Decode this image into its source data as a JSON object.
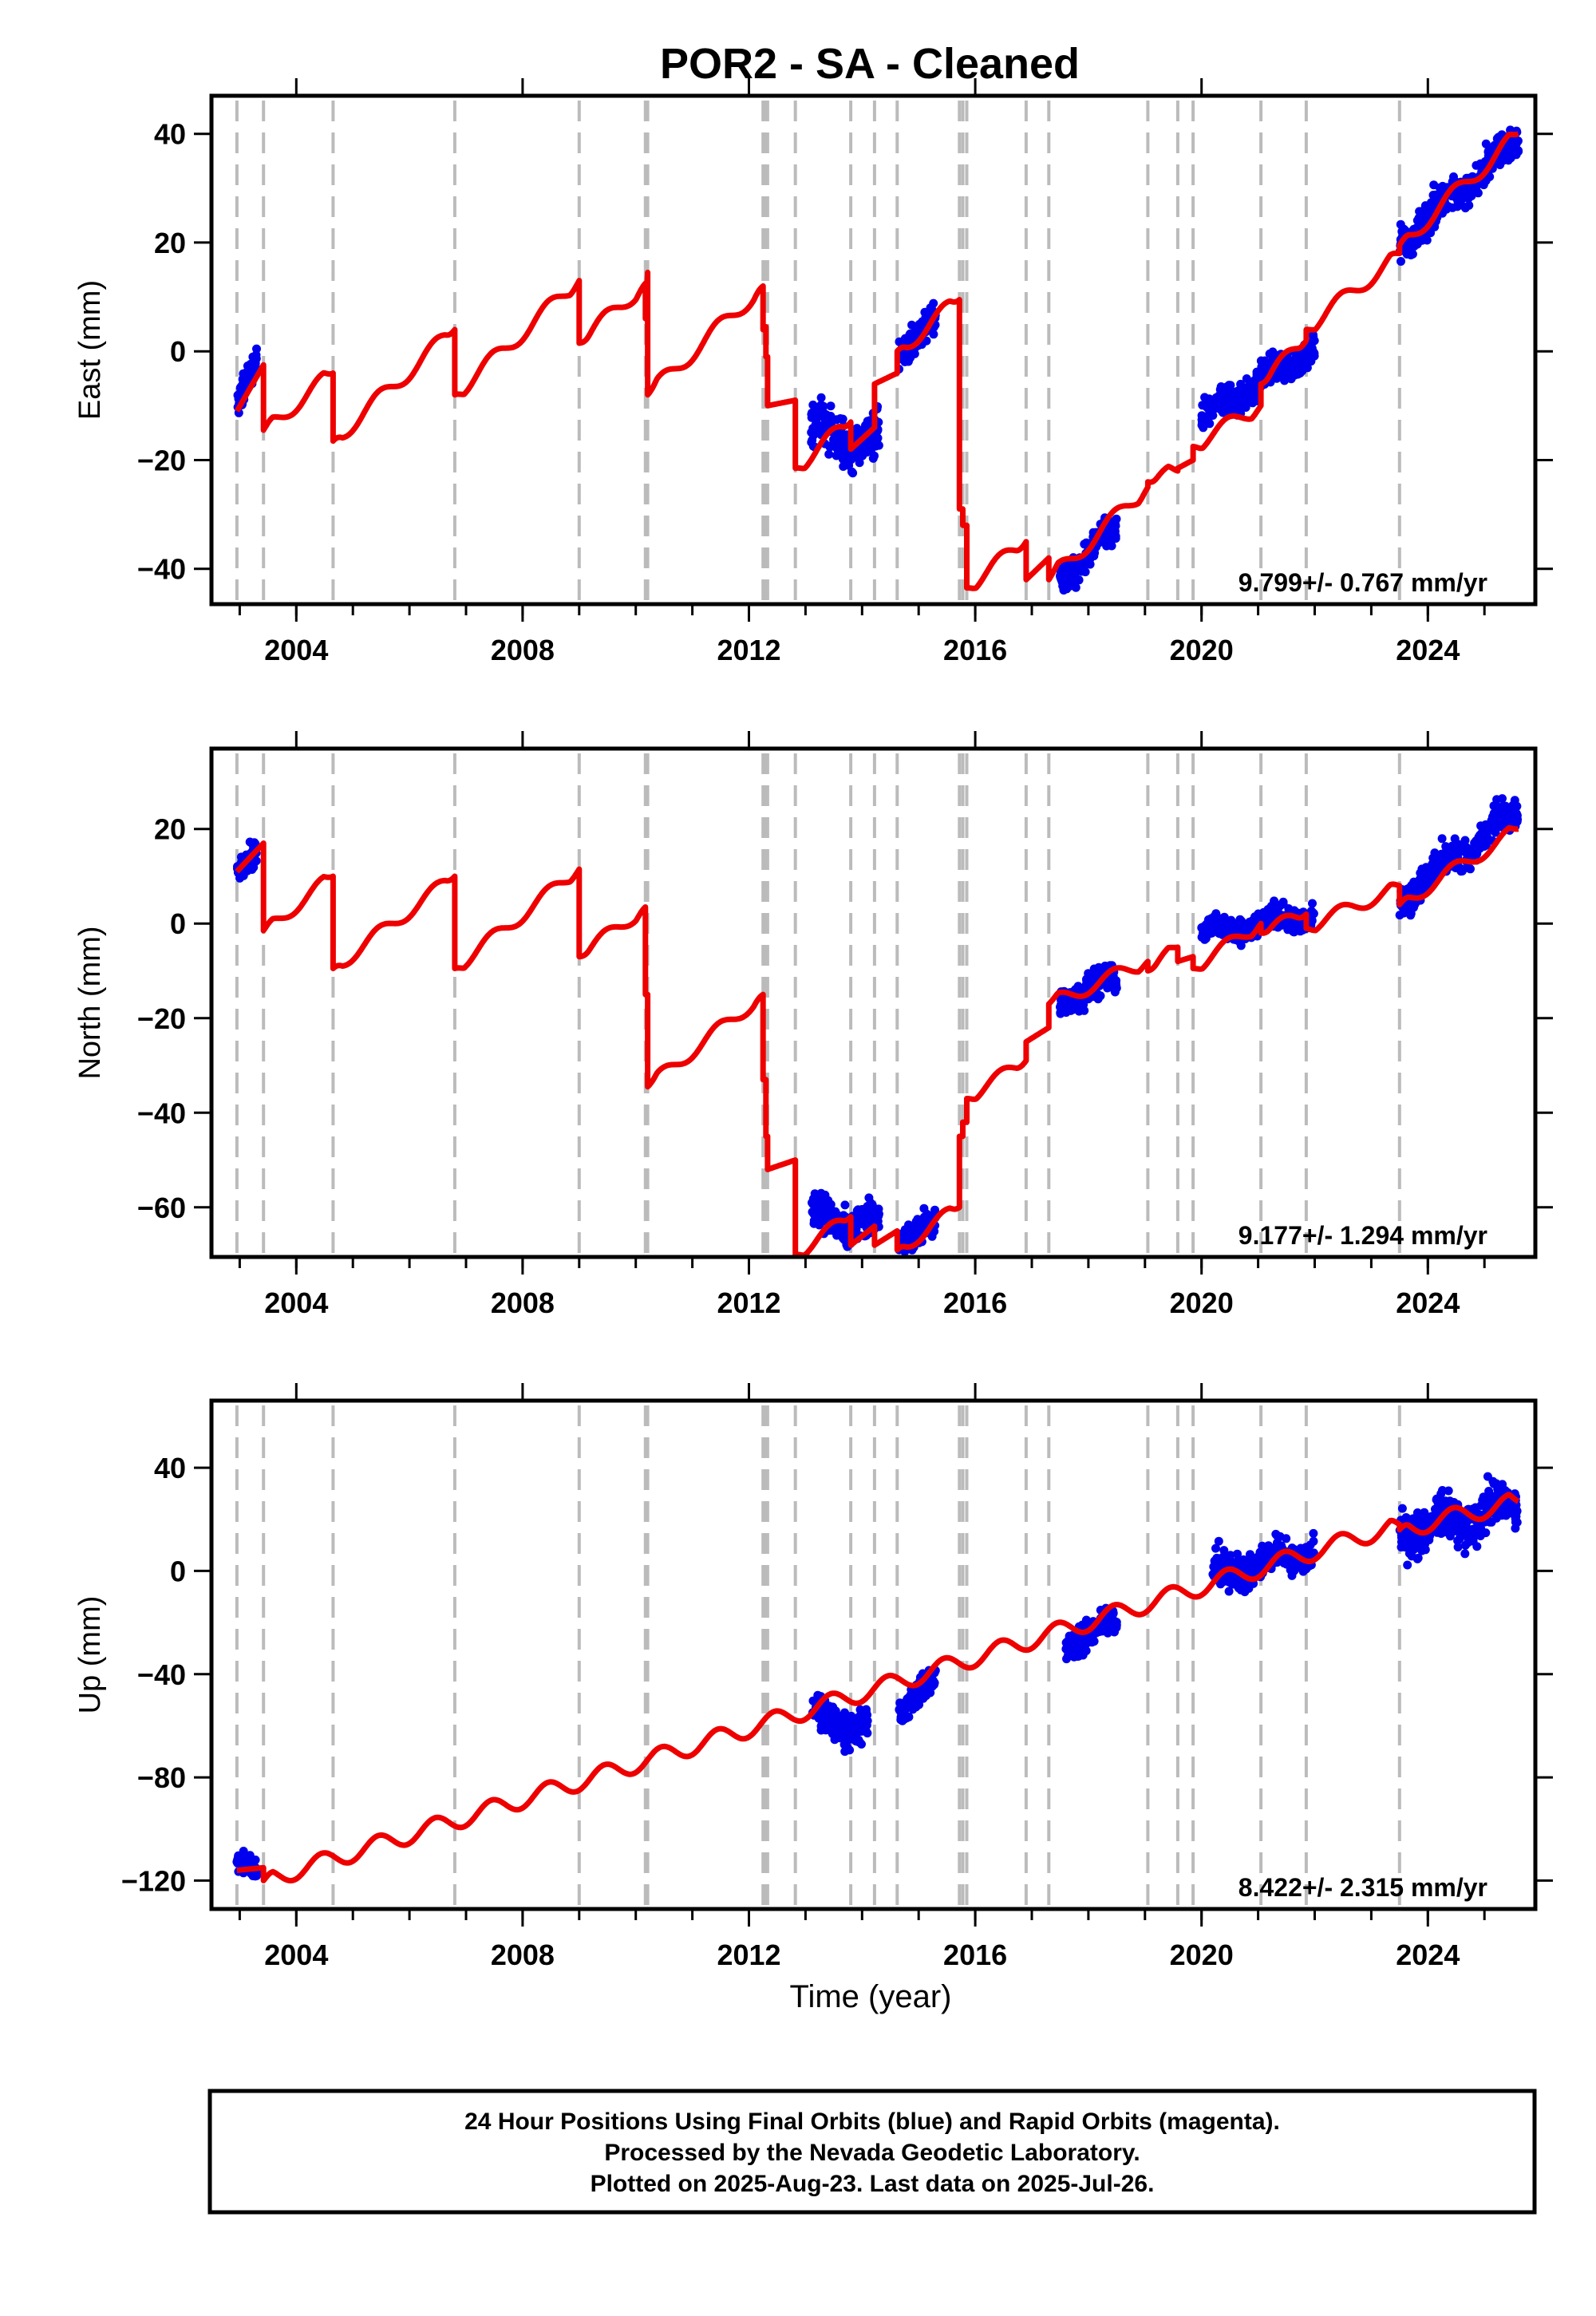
{
  "title": "POR2  - SA - Cleaned",
  "xlabel": "Time (year)",
  "info_lines": [
    "24 Hour Positions Using Final Orbits (blue) and Rapid Orbits (magenta).",
    "Processed by the Nevada Geodetic Laboratory.",
    "Plotted on 2025-Aug-23. Last data on 2025-Jul-26."
  ],
  "colors": {
    "data_points": "#0000ee",
    "model_line": "#ee0000",
    "event_lines": "#bbbbbb",
    "frame": "#000000"
  },
  "chart_data": [
    {
      "type": "scatter",
      "panel": "east",
      "ylabel": "East (mm)",
      "rate_text": "9.799+/- 0.767 mm/yr",
      "xlim": [
        2002.5,
        2025.9
      ],
      "ylim": [
        -46.5,
        47
      ],
      "x_ticks": [
        2004,
        2008,
        2012,
        2016,
        2020,
        2024
      ],
      "y_ticks": [
        -40,
        -20,
        0,
        20,
        40
      ],
      "grid": false,
      "event_lines": [
        2002.95,
        2003.42,
        2004.65,
        2006.8,
        2009.0,
        2010.17,
        2010.21,
        2012.25,
        2012.3,
        2012.33,
        2012.82,
        2013.8,
        2014.22,
        2014.62,
        2015.72,
        2015.78,
        2015.85,
        2016.9,
        2017.3,
        2019.05,
        2019.58,
        2019.85,
        2021.05,
        2021.85,
        2023.5
      ],
      "model_segments": [
        {
          "x": [
            2002.95,
            2003.42
          ],
          "y": [
            -11,
            -2.5
          ]
        },
        {
          "x": [
            2003.42,
            2004.65
          ],
          "y": [
            -14.5,
            -4
          ]
        },
        {
          "x": [
            2004.65,
            2006.8
          ],
          "y": [
            -16.5,
            4
          ]
        },
        {
          "x": [
            2006.8,
            2009.0
          ],
          "y": [
            -8,
            13
          ]
        },
        {
          "x": [
            2009.0,
            2010.17
          ],
          "y": [
            1.5,
            12.5
          ]
        },
        {
          "x": [
            2010.17,
            2010.21
          ],
          "y": [
            6,
            14.5
          ]
        },
        {
          "x": [
            2010.21,
            2012.25
          ],
          "y": [
            -8,
            12
          ]
        },
        {
          "x": [
            2012.25,
            2012.3
          ],
          "y": [
            4,
            4.5
          ]
        },
        {
          "x": [
            2012.3,
            2012.33
          ],
          "y": [
            -1,
            -1
          ]
        },
        {
          "x": [
            2012.33,
            2012.82
          ],
          "y": [
            -10,
            -9
          ]
        },
        {
          "x": [
            2012.82,
            2013.8
          ],
          "y": [
            -21.5,
            -13
          ]
        },
        {
          "x": [
            2013.8,
            2014.22
          ],
          "y": [
            -18,
            -14
          ]
        },
        {
          "x": [
            2014.22,
            2014.62
          ],
          "y": [
            -6,
            -4
          ]
        },
        {
          "x": [
            2014.62,
            2015.72
          ],
          "y": [
            0,
            9.5
          ]
        },
        {
          "x": [
            2015.72,
            2015.78
          ],
          "y": [
            -29,
            -29
          ]
        },
        {
          "x": [
            2015.78,
            2015.85
          ],
          "y": [
            -32,
            -32
          ]
        },
        {
          "x": [
            2015.85,
            2016.9
          ],
          "y": [
            -43.5,
            -35
          ]
        },
        {
          "x": [
            2016.9,
            2017.3
          ],
          "y": [
            -42,
            -38
          ]
        },
        {
          "x": [
            2017.3,
            2019.05
          ],
          "y": [
            -42,
            -25
          ]
        },
        {
          "x": [
            2019.05,
            2019.58
          ],
          "y": [
            -24,
            -22
          ]
        },
        {
          "x": [
            2019.58,
            2019.85
          ],
          "y": [
            -21.5,
            -20
          ]
        },
        {
          "x": [
            2019.85,
            2021.05
          ],
          "y": [
            -17.5,
            -10
          ]
        },
        {
          "x": [
            2021.05,
            2021.85
          ],
          "y": [
            -6,
            2
          ]
        },
        {
          "x": [
            2021.85,
            2023.5
          ],
          "y": [
            4,
            18
          ]
        },
        {
          "x": [
            2023.5,
            2025.6
          ],
          "y": [
            19.5,
            40
          ]
        }
      ],
      "data_clusters": [
        {
          "x": [
            2002.95,
            2003.3
          ],
          "y": [
            -10,
            -2.5
          ],
          "spread": 2.5
        },
        {
          "x": [
            2013.1,
            2014.3
          ],
          "y": [
            -14.5,
            -17
          ],
          "spread": 4
        },
        {
          "x": [
            2014.65,
            2015.3
          ],
          "y": [
            0.5,
            5.5
          ],
          "spread": 2.5
        },
        {
          "x": [
            2017.5,
            2018.5
          ],
          "y": [
            -42,
            -33
          ],
          "spread": 2.5
        },
        {
          "x": [
            2020.0,
            2022.0
          ],
          "y": [
            -12.5,
            1
          ],
          "spread": 2.5
        },
        {
          "x": [
            2023.5,
            2025.6
          ],
          "y": [
            20,
            39
          ],
          "spread": 2.8
        }
      ]
    },
    {
      "type": "scatter",
      "panel": "north",
      "ylabel": "North (mm)",
      "rate_text": "9.177+/- 1.294 mm/yr",
      "xlim": [
        2002.5,
        2025.9
      ],
      "ylim": [
        -70.5,
        37
      ],
      "x_ticks": [
        2004,
        2008,
        2012,
        2016,
        2020,
        2024
      ],
      "y_ticks": [
        -60,
        -40,
        -20,
        0,
        20
      ],
      "grid": false,
      "event_lines": [
        2002.95,
        2003.42,
        2004.65,
        2006.8,
        2009.0,
        2010.17,
        2010.21,
        2012.25,
        2012.3,
        2012.33,
        2012.82,
        2013.8,
        2014.22,
        2014.62,
        2015.72,
        2015.78,
        2015.85,
        2016.9,
        2017.3,
        2019.05,
        2019.58,
        2019.85,
        2021.05,
        2021.85,
        2023.5
      ],
      "model_segments": [
        {
          "x": [
            2002.95,
            2003.42
          ],
          "y": [
            11,
            17
          ]
        },
        {
          "x": [
            2003.42,
            2004.65
          ],
          "y": [
            -1.5,
            10
          ]
        },
        {
          "x": [
            2004.65,
            2006.8
          ],
          "y": [
            -9.5,
            10
          ]
        },
        {
          "x": [
            2006.8,
            2009.0
          ],
          "y": [
            -9.5,
            11.5
          ]
        },
        {
          "x": [
            2009.0,
            2010.17
          ],
          "y": [
            -7,
            3.5
          ]
        },
        {
          "x": [
            2010.17,
            2010.21
          ],
          "y": [
            -15,
            -15
          ]
        },
        {
          "x": [
            2010.21,
            2012.25
          ],
          "y": [
            -34.5,
            -15
          ]
        },
        {
          "x": [
            2012.25,
            2012.3
          ],
          "y": [
            -33,
            -33
          ]
        },
        {
          "x": [
            2012.3,
            2012.33
          ],
          "y": [
            -45,
            -45
          ]
        },
        {
          "x": [
            2012.33,
            2012.82
          ],
          "y": [
            -52,
            -50
          ]
        },
        {
          "x": [
            2012.82,
            2013.8
          ],
          "y": [
            -70,
            -62
          ]
        },
        {
          "x": [
            2013.8,
            2014.22
          ],
          "y": [
            -68,
            -64
          ]
        },
        {
          "x": [
            2014.22,
            2014.62
          ],
          "y": [
            -68,
            -65
          ]
        },
        {
          "x": [
            2014.62,
            2015.72
          ],
          "y": [
            -69,
            -60
          ]
        },
        {
          "x": [
            2015.72,
            2015.78
          ],
          "y": [
            -45,
            -45
          ]
        },
        {
          "x": [
            2015.78,
            2015.85
          ],
          "y": [
            -42,
            -42
          ]
        },
        {
          "x": [
            2015.85,
            2016.9
          ],
          "y": [
            -37,
            -29
          ]
        },
        {
          "x": [
            2016.9,
            2017.3
          ],
          "y": [
            -25,
            -22
          ]
        },
        {
          "x": [
            2017.3,
            2019.05
          ],
          "y": [
            -17,
            -8
          ]
        },
        {
          "x": [
            2019.05,
            2019.58
          ],
          "y": [
            -10,
            -5
          ]
        },
        {
          "x": [
            2019.58,
            2019.85
          ],
          "y": [
            -8,
            -7
          ]
        },
        {
          "x": [
            2019.85,
            2021.05
          ],
          "y": [
            -9.5,
            0
          ]
        },
        {
          "x": [
            2021.05,
            2021.85
          ],
          "y": [
            -2,
            2
          ]
        },
        {
          "x": [
            2021.85,
            2023.5
          ],
          "y": [
            -1,
            8
          ]
        },
        {
          "x": [
            2023.5,
            2025.6
          ],
          "y": [
            4,
            20
          ]
        }
      ],
      "data_clusters": [
        {
          "x": [
            2002.95,
            2003.3
          ],
          "y": [
            11,
            14
          ],
          "spread": 2.5
        },
        {
          "x": [
            2013.1,
            2014.3
          ],
          "y": [
            -62,
            -64
          ],
          "spread": 3.5
        },
        {
          "x": [
            2014.65,
            2015.3
          ],
          "y": [
            -66,
            -64
          ],
          "spread": 2.5
        },
        {
          "x": [
            2017.5,
            2018.5
          ],
          "y": [
            -16,
            -12
          ],
          "spread": 3
        },
        {
          "x": [
            2020.0,
            2022.0
          ],
          "y": [
            -2,
            2
          ],
          "spread": 2.2
        },
        {
          "x": [
            2023.5,
            2025.6
          ],
          "y": [
            5,
            24
          ],
          "spread": 3
        }
      ]
    },
    {
      "type": "scatter",
      "panel": "up",
      "ylabel": "Up (mm)",
      "rate_text": "8.422+/- 2.315 mm/yr",
      "xlim": [
        2002.5,
        2025.9
      ],
      "ylim": [
        -131,
        66
      ],
      "x_ticks": [
        2004,
        2008,
        2012,
        2016,
        2020,
        2024
      ],
      "y_ticks": [
        -120,
        -80,
        -40,
        0,
        40
      ],
      "grid": false,
      "event_lines": [
        2002.95,
        2003.42,
        2004.65,
        2006.8,
        2009.0,
        2010.17,
        2010.21,
        2012.25,
        2012.3,
        2012.33,
        2012.82,
        2013.8,
        2014.22,
        2014.62,
        2015.72,
        2015.78,
        2015.85,
        2016.9,
        2017.3,
        2019.05,
        2019.58,
        2019.85,
        2021.05,
        2021.85,
        2023.5
      ],
      "model_segments": [
        {
          "x": [
            2002.95,
            2003.42
          ],
          "y": [
            -116,
            -115
          ]
        },
        {
          "x": [
            2003.42,
            2023.5
          ],
          "y": [
            -120,
            18
          ]
        },
        {
          "x": [
            2023.5,
            2025.6
          ],
          "y": [
            16,
            27
          ]
        }
      ],
      "data_clusters": [
        {
          "x": [
            2002.95,
            2003.3
          ],
          "y": [
            -112,
            -118
          ],
          "spread": 4
        },
        {
          "x": [
            2013.1,
            2014.1
          ],
          "y": [
            -57,
            -60
          ],
          "spread": 6
        },
        {
          "x": [
            2014.65,
            2015.3
          ],
          "y": [
            -52,
            -44
          ],
          "spread": 5
        },
        {
          "x": [
            2017.6,
            2018.5
          ],
          "y": [
            -28,
            -20
          ],
          "spread": 5
        },
        {
          "x": [
            2020.2,
            2022.0
          ],
          "y": [
            -1,
            8
          ],
          "spread": 6
        },
        {
          "x": [
            2023.5,
            2025.6
          ],
          "y": [
            15,
            25
          ],
          "spread": 8
        }
      ]
    }
  ]
}
